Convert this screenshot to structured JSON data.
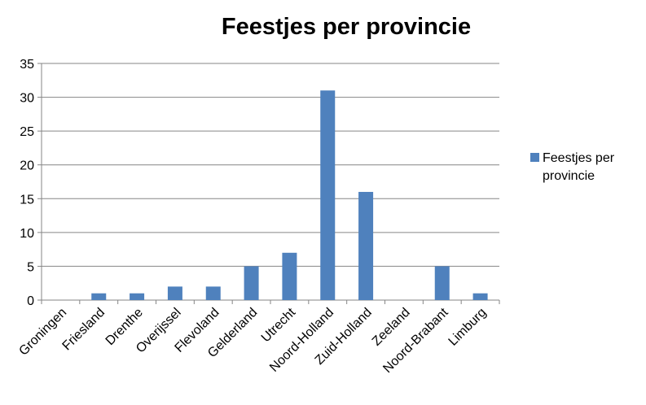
{
  "chart_data": {
    "type": "bar",
    "title": "Feestjes per provincie",
    "xlabel": "",
    "ylabel": "",
    "categories": [
      "Groningen",
      "Friesland",
      "Drenthe",
      "Overijssel",
      "Flevoland",
      "Gelderland",
      "Utrecht",
      "Noord-Holland",
      "Zuid-Holland",
      "Zeeland",
      "Noord-Brabant",
      "Limburg"
    ],
    "series": [
      {
        "name": "Feestjes per provincie",
        "values": [
          0,
          1,
          1,
          2,
          2,
          5,
          7,
          31,
          16,
          0,
          5,
          1
        ]
      }
    ],
    "ylim": [
      0,
      35
    ],
    "yticks": [
      "0",
      "5",
      "10",
      "15",
      "20",
      "25",
      "30",
      "35"
    ],
    "grid": true,
    "legend_position": "right",
    "colors": {
      "bar": "#4f81bd",
      "bar_edge": "#3f6fa8",
      "gridline": "#868686",
      "axis": "#868686",
      "text": "#000000"
    }
  }
}
